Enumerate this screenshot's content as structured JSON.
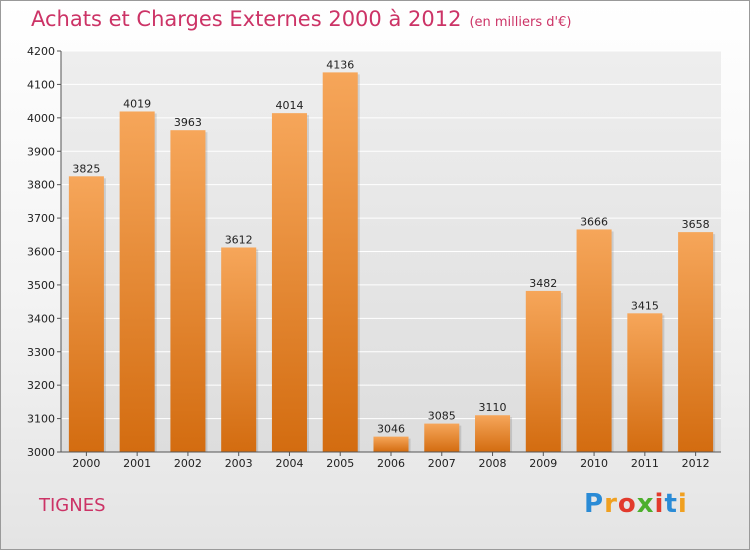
{
  "header": {
    "title": "Achats et Charges Externes 2000 à 2012",
    "subtitle": "(en milliers d'€)"
  },
  "footer": {
    "city": "TIGNES",
    "logo_letters": [
      "P",
      "r",
      "o",
      "x",
      "i",
      "t",
      "i"
    ],
    "logo_colors": [
      "#2a8bd6",
      "#f0a020",
      "#e23a2c",
      "#4caf2c",
      "#e23a2c",
      "#2a8bd6",
      "#f0a020"
    ]
  },
  "chart_data": {
    "type": "bar",
    "title": "Achats et Charges Externes 2000 à 2012",
    "subtitle": "(en milliers d'€)",
    "categories": [
      "2000",
      "2001",
      "2002",
      "2003",
      "2004",
      "2005",
      "2006",
      "2007",
      "2008",
      "2009",
      "2010",
      "2011",
      "2012"
    ],
    "values": [
      3825,
      4019,
      3963,
      3612,
      4014,
      4136,
      3046,
      3085,
      3110,
      3482,
      3666,
      3415,
      3658
    ],
    "ylim": [
      3000,
      4200
    ],
    "yticks": [
      3000,
      3100,
      3200,
      3300,
      3400,
      3500,
      3600,
      3700,
      3800,
      3900,
      4000,
      4100,
      4200
    ],
    "grid": true,
    "bar_color_top": "#f6a65a",
    "bar_color_bottom": "#d36c10"
  }
}
